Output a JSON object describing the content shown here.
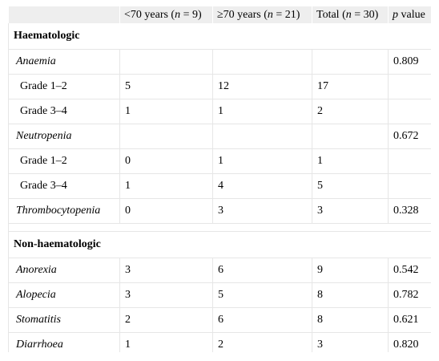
{
  "table": {
    "headers": {
      "col0": "",
      "col1_pre": "<70 years (",
      "col1_var": "n",
      "col1_post": " = 9)",
      "col2_pre": "≥70 years (",
      "col2_var": "n",
      "col2_post": " = 21)",
      "col3_pre": "Total (",
      "col3_var": "n",
      "col3_post": " = 30)",
      "col4_var": "p",
      "col4_post": " value"
    },
    "sections": {
      "haematologic": "Haematologic",
      "non_haematologic": "Non-haematologic"
    },
    "rows": {
      "anaemia": {
        "label": "Anaemia",
        "lt70": "",
        "ge70": "",
        "total": "",
        "p": "0.809"
      },
      "anaemia_g12": {
        "label": "Grade 1–2",
        "lt70": "5",
        "ge70": "12",
        "total": "17",
        "p": ""
      },
      "anaemia_g34": {
        "label": "Grade 3–4",
        "lt70": "1",
        "ge70": "1",
        "total": "2",
        "p": ""
      },
      "neutropenia": {
        "label": "Neutropenia",
        "lt70": "",
        "ge70": "",
        "total": "",
        "p": "0.672"
      },
      "neutropenia_g12": {
        "label": "Grade 1–2",
        "lt70": "0",
        "ge70": "1",
        "total": "1",
        "p": ""
      },
      "neutropenia_g34": {
        "label": "Grade 3–4",
        "lt70": "1",
        "ge70": "4",
        "total": "5",
        "p": ""
      },
      "thrombocytopenia": {
        "label": "Thrombocytopenia",
        "lt70": "0",
        "ge70": "3",
        "total": "3",
        "p": "0.328"
      },
      "anorexia": {
        "label": "Anorexia",
        "lt70": "3",
        "ge70": "6",
        "total": "9",
        "p": "0.542"
      },
      "alopecia": {
        "label": "Alopecia",
        "lt70": "3",
        "ge70": "5",
        "total": "8",
        "p": "0.782"
      },
      "stomatitis": {
        "label": "Stomatitis",
        "lt70": "2",
        "ge70": "6",
        "total": "8",
        "p": "0.621"
      },
      "diarrhoea": {
        "label": "Diarrhoea",
        "lt70": "1",
        "ge70": "2",
        "total": "3",
        "p": "0.820"
      }
    }
  }
}
